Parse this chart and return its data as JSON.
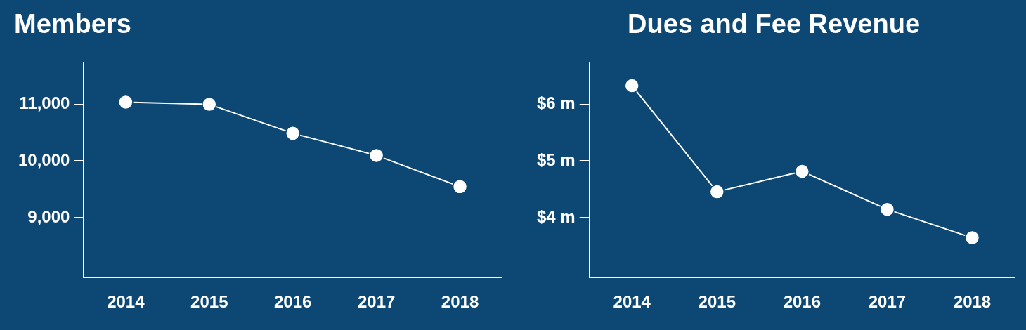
{
  "chart_data": [
    {
      "type": "line",
      "title": "Members",
      "categories": [
        "2014",
        "2015",
        "2016",
        "2017",
        "2018"
      ],
      "values": [
        11040,
        11000,
        10490,
        10100,
        9550
      ],
      "color": "#ffffff",
      "marker": "circle",
      "ylim": [
        7950,
        11730
      ],
      "yticks": [
        {
          "value": 9000,
          "label": "9,000"
        },
        {
          "value": 10000,
          "label": "10,000"
        },
        {
          "value": 11000,
          "label": "11,000"
        }
      ]
    },
    {
      "type": "line",
      "title": "Dues and Fee Revenue",
      "categories": [
        "2014",
        "2015",
        "2016",
        "2017",
        "2018"
      ],
      "values": [
        6.33,
        4.46,
        4.82,
        4.15,
        3.65
      ],
      "color": "#ffffff",
      "marker": "circle",
      "ylim": [
        2.95,
        6.73
      ],
      "yticks": [
        {
          "value": 4,
          "label": "$4 m"
        },
        {
          "value": 5,
          "label": "$5 m"
        },
        {
          "value": 6,
          "label": "$6 m"
        }
      ]
    }
  ]
}
